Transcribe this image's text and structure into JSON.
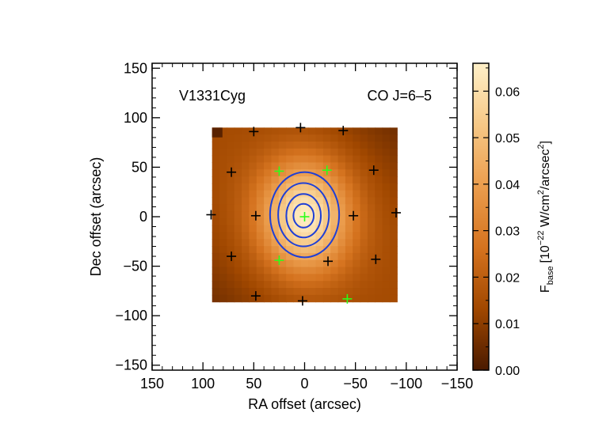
{
  "chart_data": {
    "type": "heatmap",
    "object_name": "V1331Cyg",
    "line_name": "CO J=6–5",
    "xlabel": "RA offset (arcsec)",
    "ylabel": "Dec offset (arcsec)",
    "xlim": [
      150,
      -150
    ],
    "ylim": [
      -155,
      155
    ],
    "xticks": [
      150,
      100,
      50,
      0,
      -50,
      -100,
      -150
    ],
    "yticks": [
      150,
      100,
      50,
      0,
      -50,
      -100,
      -150
    ],
    "xtick_labels": [
      "150",
      "100",
      "50",
      "0",
      "−50",
      "−100",
      "−150"
    ],
    "ytick_labels": [
      "150",
      "100",
      "50",
      "0",
      "−50",
      "−100",
      "−150"
    ],
    "map_extent": {
      "ra": [
        91,
        -91
      ],
      "dec": [
        -86,
        90
      ]
    },
    "map_grid": [
      25,
      25
    ],
    "map_peak": {
      "ra": 0,
      "dec": 0,
      "value": 0.066
    },
    "map_background": 0.012,
    "colorbar": {
      "label_main": "F",
      "label_sub": "base",
      "label_unit": "[10",
      "label_exp": "−22",
      "label_rest": " W/cm",
      "label_exp2": "2",
      "label_rest2": "/arcsec",
      "label_exp3": "2",
      "label_close": "]",
      "min": 0.0,
      "max": 0.066,
      "ticks": [
        0.0,
        0.01,
        0.02,
        0.03,
        0.04,
        0.05,
        0.06
      ],
      "tick_labels": [
        "0.00",
        "0.01",
        "0.02",
        "0.03",
        "0.04",
        "0.05",
        "0.06"
      ],
      "colors": [
        "#4a1a00",
        "#a14800",
        "#d5731f",
        "#eb9d4d",
        "#f6c886",
        "#fff0c8"
      ]
    },
    "contours": {
      "color": "#1f3fd6",
      "levels": [
        {
          "rx": 34,
          "ry": 43,
          "cx": 0,
          "cy": 2
        },
        {
          "rx": 25,
          "ry": 32,
          "cx": 1,
          "cy": 2
        },
        {
          "rx": 17,
          "ry": 22,
          "cx": 1,
          "cy": 1
        },
        {
          "rx": 10,
          "ry": 12,
          "cx": 1,
          "cy": 1
        }
      ]
    },
    "spaxels_black": [
      [
        4,
        90
      ],
      [
        50,
        86
      ],
      [
        -38,
        87
      ],
      [
        72,
        45
      ],
      [
        -68,
        47
      ],
      [
        92,
        2
      ],
      [
        48,
        1
      ],
      [
        -48,
        1
      ],
      [
        -90,
        4
      ],
      [
        72,
        -40
      ],
      [
        -70,
        -43
      ],
      [
        -23,
        -45
      ],
      [
        48,
        -80
      ],
      [
        2,
        -85
      ]
    ],
    "spaxels_green": [
      [
        25,
        46
      ],
      [
        -22,
        47
      ],
      [
        0,
        0
      ],
      [
        25,
        -44
      ],
      [
        -42,
        -83
      ]
    ]
  }
}
